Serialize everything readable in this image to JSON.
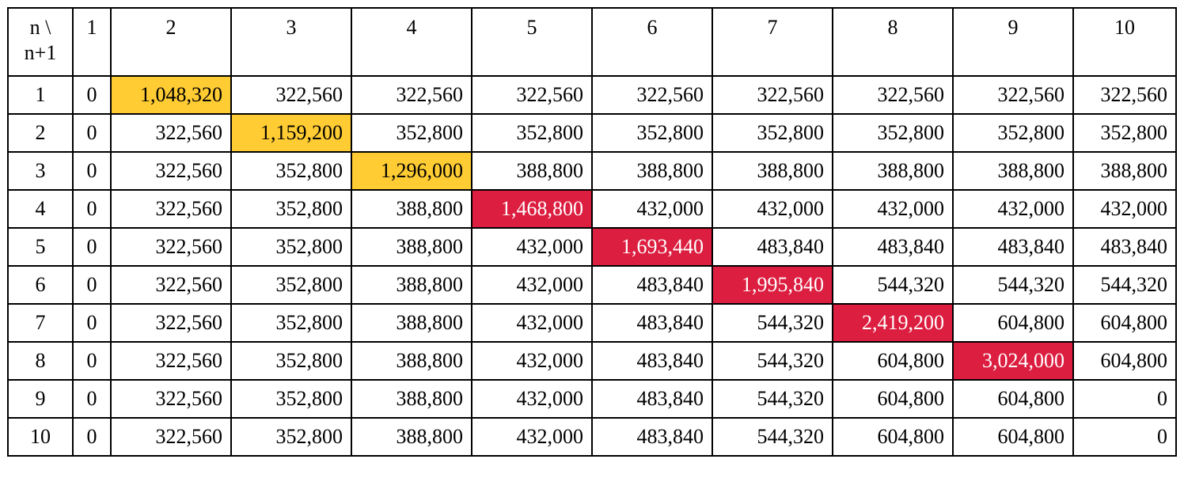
{
  "corner_label": "n \\ n+1",
  "columns": [
    "1",
    "2",
    "3",
    "4",
    "5",
    "6",
    "7",
    "8",
    "9",
    "10"
  ],
  "rows": [
    {
      "label": "1",
      "values": [
        "0",
        "1,048,320",
        "322,560",
        "322,560",
        "322,560",
        "322,560",
        "322,560",
        "322,560",
        "322,560",
        "322,560"
      ],
      "highlight_col": 1,
      "highlight": "yellow"
    },
    {
      "label": "2",
      "values": [
        "0",
        "322,560",
        "1,159,200",
        "352,800",
        "352,800",
        "352,800",
        "352,800",
        "352,800",
        "352,800",
        "352,800"
      ],
      "highlight_col": 2,
      "highlight": "yellow"
    },
    {
      "label": "3",
      "values": [
        "0",
        "322,560",
        "352,800",
        "1,296,000",
        "388,800",
        "388,800",
        "388,800",
        "388,800",
        "388,800",
        "388,800"
      ],
      "highlight_col": 3,
      "highlight": "yellow"
    },
    {
      "label": "4",
      "values": [
        "0",
        "322,560",
        "352,800",
        "388,800",
        "1,468,800",
        "432,000",
        "432,000",
        "432,000",
        "432,000",
        "432,000"
      ],
      "highlight_col": 4,
      "highlight": "red"
    },
    {
      "label": "5",
      "values": [
        "0",
        "322,560",
        "352,800",
        "388,800",
        "432,000",
        "1,693,440",
        "483,840",
        "483,840",
        "483,840",
        "483,840"
      ],
      "highlight_col": 5,
      "highlight": "red"
    },
    {
      "label": "6",
      "values": [
        "0",
        "322,560",
        "352,800",
        "388,800",
        "432,000",
        "483,840",
        "1,995,840",
        "544,320",
        "544,320",
        "544,320"
      ],
      "highlight_col": 6,
      "highlight": "red"
    },
    {
      "label": "7",
      "values": [
        "0",
        "322,560",
        "352,800",
        "388,800",
        "432,000",
        "483,840",
        "544,320",
        "2,419,200",
        "604,800",
        "604,800"
      ],
      "highlight_col": 7,
      "highlight": "red"
    },
    {
      "label": "8",
      "values": [
        "0",
        "322,560",
        "352,800",
        "388,800",
        "432,000",
        "483,840",
        "544,320",
        "604,800",
        "3,024,000",
        "604,800"
      ],
      "highlight_col": 8,
      "highlight": "red"
    },
    {
      "label": "9",
      "values": [
        "0",
        "322,560",
        "352,800",
        "388,800",
        "432,000",
        "483,840",
        "544,320",
        "604,800",
        "604,800",
        "0"
      ],
      "highlight_col": -1,
      "highlight": ""
    },
    {
      "label": "10",
      "values": [
        "0",
        "322,560",
        "352,800",
        "388,800",
        "432,000",
        "483,840",
        "544,320",
        "604,800",
        "604,800",
        "0"
      ],
      "highlight_col": -1,
      "highlight": ""
    }
  ],
  "colors": {
    "highlight_yellow": "#ffcc33",
    "highlight_red": "#dc1e40",
    "border": "#000000"
  }
}
